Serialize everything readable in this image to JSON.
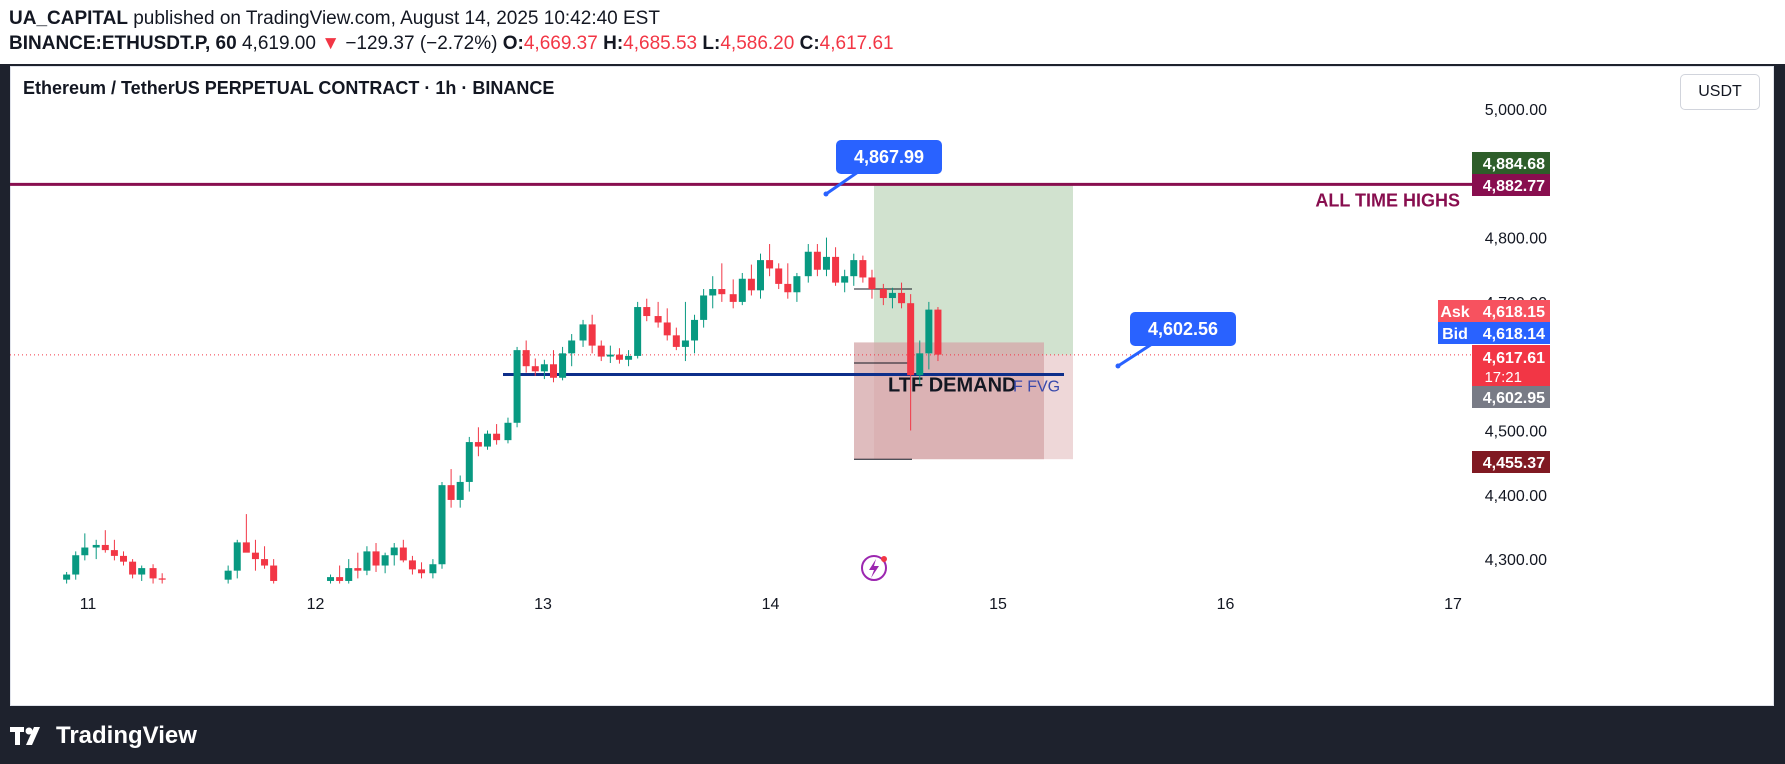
{
  "header": {
    "publisher": "UA_CAPITAL",
    "published_text": "published on TradingView.com, August 14, 2025 10:42:40 EST",
    "symbol_interval": "BINANCE:ETHUSDT.P, 60",
    "last": "4,619.00",
    "change_arrow": "▼",
    "change": "−129.37 (−2.72%)",
    "o_label": "O:",
    "o_value": "4,669.37",
    "h_label": "H:",
    "h_value": "4,685.53",
    "l_label": "L:",
    "l_value": "4,586.20",
    "c_label": "C:",
    "c_value": "4,617.61"
  },
  "chart_header": {
    "title": "Ethereum / TetherUS PERPETUAL CONTRACT · 1h · BINANCE",
    "currency": "USDT"
  },
  "colors": {
    "up": "#089981",
    "down": "#f23645",
    "ath_line": "#880e4f",
    "demand_line": "#0d2e8a",
    "callout": "#2962ff",
    "target_zone": "#cfe0cc",
    "stop_zone": "#d4a5a8"
  },
  "chart_data": {
    "type": "candlestick",
    "symbol": "ETHUSDT.P",
    "interval": "1h",
    "y_axis": {
      "min": 4260,
      "max": 5030,
      "ticks": [
        "5,000.00",
        "4,800.00",
        "4,700.00",
        "4,500.00",
        "4,400.00",
        "4,300.00"
      ],
      "tick_values": [
        5000,
        4800,
        4700,
        4500,
        4400,
        4300
      ]
    },
    "x_axis": {
      "tick_labels": [
        "11",
        "12",
        "13",
        "14",
        "15",
        "16",
        "17"
      ],
      "tick_days": [
        11,
        12,
        13,
        14,
        15,
        16,
        17
      ]
    },
    "candles": [
      {
        "t": 10.95,
        "o": 4268,
        "h": 4280,
        "l": 4262,
        "c": 4276
      },
      {
        "t": 10.99,
        "o": 4276,
        "h": 4312,
        "l": 4268,
        "c": 4306
      },
      {
        "t": 11.03,
        "o": 4306,
        "h": 4340,
        "l": 4298,
        "c": 4318
      },
      {
        "t": 11.08,
        "o": 4318,
        "h": 4330,
        "l": 4300,
        "c": 4322
      },
      {
        "t": 11.12,
        "o": 4322,
        "h": 4345,
        "l": 4310,
        "c": 4314
      },
      {
        "t": 11.16,
        "o": 4314,
        "h": 4330,
        "l": 4298,
        "c": 4305
      },
      {
        "t": 11.2,
        "o": 4305,
        "h": 4312,
        "l": 4290,
        "c": 4296
      },
      {
        "t": 11.24,
        "o": 4296,
        "h": 4300,
        "l": 4270,
        "c": 4276
      },
      {
        "t": 11.28,
        "o": 4276,
        "h": 4290,
        "l": 4266,
        "c": 4286
      },
      {
        "t": 11.33,
        "o": 4286,
        "h": 4292,
        "l": 4262,
        "c": 4270
      },
      {
        "t": 11.37,
        "o": 4270,
        "h": 4278,
        "l": 4262,
        "c": 4268
      },
      {
        "t": 11.66,
        "o": 4268,
        "h": 4290,
        "l": 4262,
        "c": 4282
      },
      {
        "t": 11.7,
        "o": 4282,
        "h": 4330,
        "l": 4270,
        "c": 4326
      },
      {
        "t": 11.74,
        "o": 4326,
        "h": 4370,
        "l": 4312,
        "c": 4310
      },
      {
        "t": 11.78,
        "o": 4310,
        "h": 4330,
        "l": 4282,
        "c": 4300
      },
      {
        "t": 11.82,
        "o": 4300,
        "h": 4320,
        "l": 4285,
        "c": 4290
      },
      {
        "t": 11.86,
        "o": 4290,
        "h": 4300,
        "l": 4262,
        "c": 4266
      },
      {
        "t": 12.11,
        "o": 4266,
        "h": 4276,
        "l": 4262,
        "c": 4272
      },
      {
        "t": 12.15,
        "o": 4272,
        "h": 4290,
        "l": 4262,
        "c": 4266
      },
      {
        "t": 12.19,
        "o": 4266,
        "h": 4300,
        "l": 4262,
        "c": 4286
      },
      {
        "t": 12.23,
        "o": 4286,
        "h": 4310,
        "l": 4270,
        "c": 4282
      },
      {
        "t": 12.27,
        "o": 4282,
        "h": 4320,
        "l": 4275,
        "c": 4312
      },
      {
        "t": 12.31,
        "o": 4312,
        "h": 4325,
        "l": 4280,
        "c": 4290
      },
      {
        "t": 12.35,
        "o": 4290,
        "h": 4310,
        "l": 4278,
        "c": 4306
      },
      {
        "t": 12.39,
        "o": 4306,
        "h": 4325,
        "l": 4290,
        "c": 4318
      },
      {
        "t": 12.43,
        "o": 4318,
        "h": 4330,
        "l": 4295,
        "c": 4298
      },
      {
        "t": 12.47,
        "o": 4298,
        "h": 4305,
        "l": 4276,
        "c": 4284
      },
      {
        "t": 12.51,
        "o": 4284,
        "h": 4295,
        "l": 4270,
        "c": 4278
      },
      {
        "t": 12.56,
        "o": 4278,
        "h": 4300,
        "l": 4270,
        "c": 4292
      },
      {
        "t": 12.6,
        "o": 4292,
        "h": 4420,
        "l": 4285,
        "c": 4415
      },
      {
        "t": 12.64,
        "o": 4415,
        "h": 4440,
        "l": 4380,
        "c": 4392
      },
      {
        "t": 12.68,
        "o": 4392,
        "h": 4430,
        "l": 4380,
        "c": 4420
      },
      {
        "t": 12.72,
        "o": 4420,
        "h": 4490,
        "l": 4405,
        "c": 4482
      },
      {
        "t": 12.76,
        "o": 4482,
        "h": 4505,
        "l": 4460,
        "c": 4475
      },
      {
        "t": 12.8,
        "o": 4475,
        "h": 4500,
        "l": 4470,
        "c": 4495
      },
      {
        "t": 12.84,
        "o": 4495,
        "h": 4510,
        "l": 4478,
        "c": 4485
      },
      {
        "t": 12.89,
        "o": 4485,
        "h": 4520,
        "l": 4480,
        "c": 4512
      },
      {
        "t": 12.93,
        "o": 4512,
        "h": 4630,
        "l": 4505,
        "c": 4625
      },
      {
        "t": 12.97,
        "o": 4625,
        "h": 4640,
        "l": 4590,
        "c": 4600
      },
      {
        "t": 13.01,
        "o": 4600,
        "h": 4612,
        "l": 4585,
        "c": 4592
      },
      {
        "t": 13.05,
        "o": 4592,
        "h": 4610,
        "l": 4580,
        "c": 4603
      },
      {
        "t": 13.09,
        "o": 4603,
        "h": 4625,
        "l": 4575,
        "c": 4582
      },
      {
        "t": 13.13,
        "o": 4582,
        "h": 4630,
        "l": 4578,
        "c": 4620
      },
      {
        "t": 13.17,
        "o": 4620,
        "h": 4650,
        "l": 4600,
        "c": 4640
      },
      {
        "t": 13.22,
        "o": 4640,
        "h": 4672,
        "l": 4630,
        "c": 4665
      },
      {
        "t": 13.26,
        "o": 4665,
        "h": 4680,
        "l": 4620,
        "c": 4632
      },
      {
        "t": 13.3,
        "o": 4632,
        "h": 4640,
        "l": 4608,
        "c": 4615
      },
      {
        "t": 13.34,
        "o": 4615,
        "h": 4632,
        "l": 4605,
        "c": 4618
      },
      {
        "t": 13.38,
        "o": 4618,
        "h": 4628,
        "l": 4604,
        "c": 4610
      },
      {
        "t": 13.42,
        "o": 4610,
        "h": 4625,
        "l": 4600,
        "c": 4616
      },
      {
        "t": 13.46,
        "o": 4616,
        "h": 4700,
        "l": 4612,
        "c": 4692
      },
      {
        "t": 13.5,
        "o": 4692,
        "h": 4705,
        "l": 4670,
        "c": 4678
      },
      {
        "t": 13.55,
        "o": 4678,
        "h": 4700,
        "l": 4660,
        "c": 4668
      },
      {
        "t": 13.59,
        "o": 4668,
        "h": 4690,
        "l": 4640,
        "c": 4648
      },
      {
        "t": 13.63,
        "o": 4648,
        "h": 4660,
        "l": 4625,
        "c": 4630
      },
      {
        "t": 13.67,
        "o": 4630,
        "h": 4700,
        "l": 4608,
        "c": 4640
      },
      {
        "t": 13.71,
        "o": 4640,
        "h": 4680,
        "l": 4620,
        "c": 4672
      },
      {
        "t": 13.75,
        "o": 4672,
        "h": 4720,
        "l": 4660,
        "c": 4710
      },
      {
        "t": 13.79,
        "o": 4710,
        "h": 4740,
        "l": 4690,
        "c": 4720
      },
      {
        "t": 13.83,
        "o": 4720,
        "h": 4760,
        "l": 4700,
        "c": 4712
      },
      {
        "t": 13.88,
        "o": 4712,
        "h": 4735,
        "l": 4690,
        "c": 4700
      },
      {
        "t": 13.92,
        "o": 4700,
        "h": 4745,
        "l": 4695,
        "c": 4736
      },
      {
        "t": 13.96,
        "o": 4736,
        "h": 4758,
        "l": 4710,
        "c": 4718
      },
      {
        "t": 14.0,
        "o": 4718,
        "h": 4775,
        "l": 4705,
        "c": 4765
      },
      {
        "t": 14.04,
        "o": 4765,
        "h": 4790,
        "l": 4740,
        "c": 4752
      },
      {
        "t": 14.08,
        "o": 4752,
        "h": 4760,
        "l": 4720,
        "c": 4728
      },
      {
        "t": 14.12,
        "o": 4728,
        "h": 4760,
        "l": 4705,
        "c": 4715
      },
      {
        "t": 14.16,
        "o": 4715,
        "h": 4745,
        "l": 4700,
        "c": 4740
      },
      {
        "t": 14.21,
        "o": 4740,
        "h": 4790,
        "l": 4730,
        "c": 4778
      },
      {
        "t": 14.25,
        "o": 4778,
        "h": 4790,
        "l": 4740,
        "c": 4750
      },
      {
        "t": 14.29,
        "o": 4750,
        "h": 4800,
        "l": 4740,
        "c": 4770
      },
      {
        "t": 14.33,
        "o": 4770,
        "h": 4785,
        "l": 4725,
        "c": 4730
      },
      {
        "t": 14.37,
        "o": 4730,
        "h": 4750,
        "l": 4715,
        "c": 4740
      },
      {
        "t": 14.41,
        "o": 4740,
        "h": 4775,
        "l": 4725,
        "c": 4765
      },
      {
        "t": 14.45,
        "o": 4765,
        "h": 4772,
        "l": 4730,
        "c": 4738
      },
      {
        "t": 14.49,
        "o": 4738,
        "h": 4750,
        "l": 4705,
        "c": 4720
      },
      {
        "t": 14.54,
        "o": 4720,
        "h": 4728,
        "l": 4695,
        "c": 4706
      },
      {
        "t": 14.58,
        "o": 4706,
        "h": 4722,
        "l": 4690,
        "c": 4714
      },
      {
        "t": 14.62,
        "o": 4714,
        "h": 4730,
        "l": 4690,
        "c": 4698
      },
      {
        "t": 14.66,
        "o": 4698,
        "h": 4712,
        "l": 4500,
        "c": 4586
      },
      {
        "t": 14.7,
        "o": 4586,
        "h": 4640,
        "l": 4572,
        "c": 4620
      },
      {
        "t": 14.74,
        "o": 4620,
        "h": 4700,
        "l": 4595,
        "c": 4688
      },
      {
        "t": 14.78,
        "o": 4688,
        "h": 4692,
        "l": 4608,
        "c": 4618
      }
    ],
    "horizontal_levels": [
      {
        "label": "ALL TIME HIGHS",
        "price": 4882.77
      },
      {
        "label": "LTF DEMAND",
        "price": 4587
      }
    ],
    "zones": [
      {
        "label": "target",
        "top": 4884.68,
        "bottom": 4617.61
      },
      {
        "label": "stop",
        "top": 4617.61,
        "bottom": 4455.37
      },
      {
        "label": "F FVG",
        "top": 4637,
        "bottom": 4455.37
      }
    ],
    "callouts": [
      "4,867.99",
      "4,602.56"
    ],
    "price_labels": {
      "target": "4,884.68",
      "ath": "4,882.77",
      "ask_label": "Ask",
      "ask": "4,618.15",
      "bid_label": "Bid",
      "bid": "4,618.14",
      "last": "4,617.61",
      "countdown": "17:21",
      "entry": "4,602.95",
      "stop": "4,455.37"
    },
    "annotation_labels": {
      "ath": "ALL TIME HIGHS",
      "demand": "LTF DEMAND",
      "fvg": "F FVG"
    }
  },
  "footer": {
    "brand": "TradingView"
  }
}
